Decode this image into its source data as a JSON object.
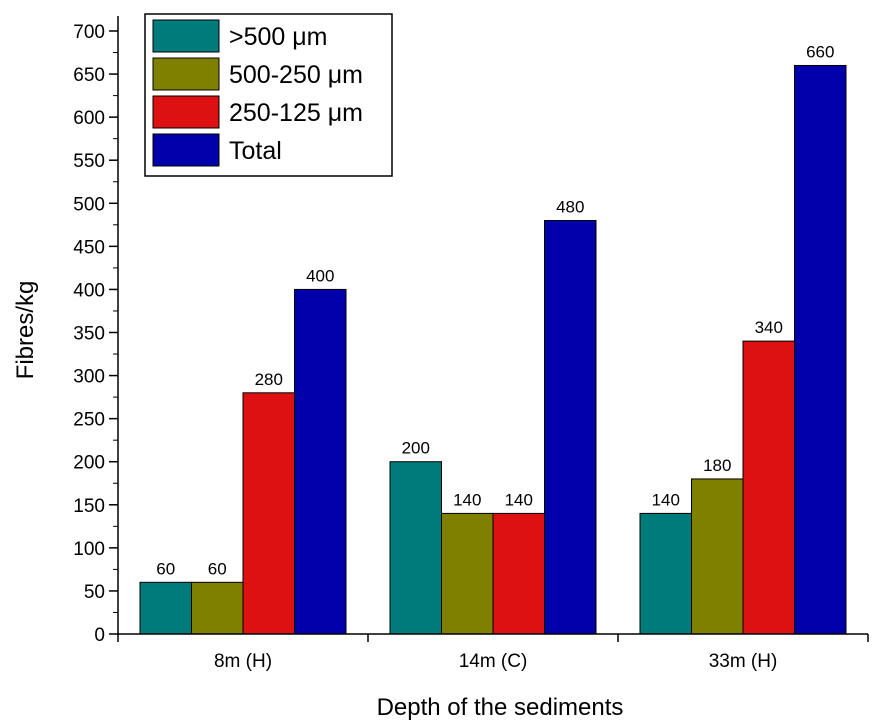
{
  "chart_data": {
    "type": "bar",
    "categories": [
      "8m (H)",
      "14m (C)",
      "33m (H)"
    ],
    "series": [
      {
        "name": ">500 μm",
        "color": "#007b7b",
        "values": [
          60,
          200,
          140
        ]
      },
      {
        "name": "500-250 μm",
        "color": "#7f7f00",
        "values": [
          60,
          140,
          180
        ]
      },
      {
        "name": "250-125 μm",
        "color": "#dd1111",
        "values": [
          280,
          140,
          340
        ]
      },
      {
        "name": "Total",
        "color": "#0000aa",
        "values": [
          400,
          480,
          660
        ]
      }
    ],
    "data_labels": [
      [
        "60",
        "60",
        "280",
        "400"
      ],
      [
        "200",
        "140",
        "140",
        "480"
      ],
      [
        "140",
        "180",
        "340",
        "660"
      ]
    ],
    "xlabel": "Depth of the sediments",
    "ylabel": "Fibres/kg",
    "ylim": [
      0,
      700
    ],
    "yticks": [
      "0",
      "50",
      "100",
      "150",
      "200",
      "250",
      "300",
      "350",
      "400",
      "450",
      "500",
      "550",
      "600",
      "650",
      "700"
    ],
    "grid": false,
    "legend_position": "top-left"
  }
}
